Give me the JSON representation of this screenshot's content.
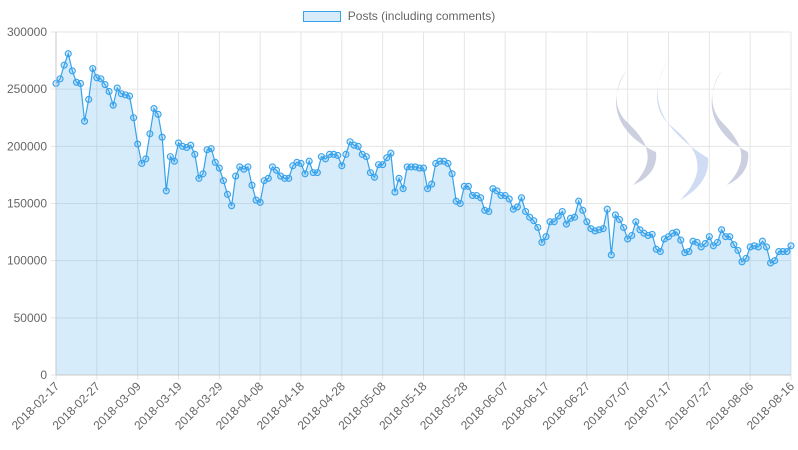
{
  "chart_data": {
    "type": "area",
    "series": [
      {
        "name": "Posts (including comments)",
        "color": "#36a2eb",
        "values": [
          255000,
          259000,
          271000,
          281000,
          266000,
          256000,
          255000,
          222000,
          241000,
          268000,
          260000,
          259000,
          254000,
          248000,
          236000,
          251000,
          246000,
          245000,
          244000,
          225000,
          202000,
          185000,
          189000,
          211000,
          233000,
          228000,
          208000,
          161000,
          191000,
          187000,
          203000,
          200000,
          199000,
          201000,
          193000,
          172000,
          176000,
          197000,
          198000,
          186000,
          181000,
          170000,
          158000,
          148000,
          174000,
          182000,
          180000,
          182000,
          166000,
          153000,
          151000,
          170000,
          172000,
          182000,
          179000,
          174000,
          172000,
          172000,
          183000,
          186000,
          185000,
          176000,
          187000,
          177000,
          177000,
          191000,
          189000,
          193000,
          193000,
          192000,
          183000,
          193000,
          204000,
          201000,
          200000,
          193000,
          191000,
          177000,
          173000,
          184000,
          184000,
          190000,
          194000,
          160000,
          172000,
          163000,
          182000,
          182000,
          182000,
          181000,
          181000,
          163000,
          167000,
          185000,
          187000,
          187000,
          185000,
          176000,
          152000,
          150000,
          165000,
          165000,
          157000,
          157000,
          155000,
          144000,
          143000,
          163000,
          161000,
          157000,
          157000,
          154000,
          145000,
          147000,
          155000,
          143000,
          138000,
          135000,
          129000,
          116000,
          121000,
          134000,
          134000,
          139000,
          143000,
          132000,
          137000,
          138000,
          152000,
          144000,
          134000,
          128000,
          126000,
          127000,
          128000,
          145000,
          105000,
          140000,
          136000,
          129000,
          119000,
          122000,
          134000,
          127000,
          124000,
          122000,
          123000,
          110000,
          108000,
          119000,
          121000,
          124000,
          125000,
          118000,
          107000,
          108000,
          117000,
          116000,
          112000,
          115000,
          121000,
          113000,
          116000,
          127000,
          121000,
          121000,
          114000,
          109000,
          99000,
          102000,
          112000,
          113000,
          112000,
          117000,
          112000,
          98000,
          100000,
          108000,
          108000,
          108000,
          113000
        ]
      }
    ],
    "x_tick_labels": [
      "2018-02-17",
      "2018-02-27",
      "2018-03-09",
      "2018-03-19",
      "2018-03-29",
      "2018-04-08",
      "2018-04-18",
      "2018-04-28",
      "2018-05-08",
      "2018-05-18",
      "2018-05-28",
      "2018-06-07",
      "2018-06-17",
      "2018-06-27",
      "2018-07-07",
      "2018-07-17",
      "2018-07-27",
      "2018-08-06",
      "2018-08-16"
    ],
    "x_range": [
      "2018-02-17",
      "2018-08-16"
    ],
    "y_ticks": [
      0,
      50000,
      100000,
      150000,
      200000,
      250000,
      300000
    ],
    "y_tick_labels": [
      "0",
      "50000",
      "100000",
      "150000",
      "200000",
      "250000",
      "300000"
    ],
    "ylim": [
      0,
      300000
    ],
    "grid": true,
    "legend_position": "top-center",
    "watermark_icon": "steem-logo-icon"
  }
}
